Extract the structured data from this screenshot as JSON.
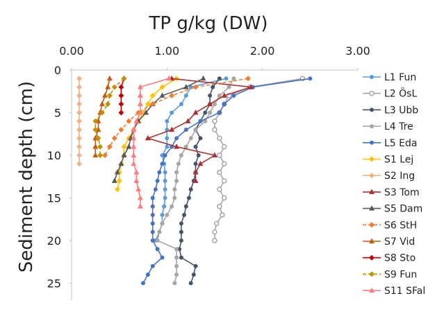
{
  "chart_data": {
    "type": "line",
    "title": "TP g/kg (DW)",
    "xlabel": "TP g/kg (DW)",
    "ylabel": "Sediment depth (cm)",
    "xlim": [
      0,
      3
    ],
    "ylim": [
      0,
      27
    ],
    "x_axis_position": "top",
    "y_axis_inverted": true,
    "x_ticks": [
      "0.00",
      "1.00",
      "2.00",
      "3.00"
    ],
    "y_ticks": [
      "0",
      "5",
      "10",
      "15",
      "20",
      "25"
    ],
    "grid": false,
    "legend_position": "right",
    "series": [
      {
        "name": "L1 Fun",
        "color": "#5b9bd5",
        "marker": "circle",
        "dash": false,
        "points": [
          [
            1.62,
            1
          ],
          [
            1.25,
            2
          ],
          [
            1.2,
            3
          ],
          [
            1.15,
            4
          ],
          [
            1.05,
            5
          ],
          [
            1.0,
            6
          ],
          [
            1.0,
            7
          ],
          [
            1.0,
            8
          ],
          [
            1.0,
            9
          ],
          [
            0.95,
            10
          ],
          [
            0.97,
            11
          ],
          [
            0.98,
            12
          ],
          [
            0.98,
            13
          ],
          [
            0.98,
            14
          ],
          [
            0.98,
            15
          ],
          [
            0.97,
            16
          ],
          [
            0.95,
            17
          ],
          [
            0.95,
            18
          ],
          [
            0.92,
            19
          ],
          [
            0.88,
            20
          ]
        ]
      },
      {
        "name": "L2 ÖsL",
        "color": "#a5a5a5",
        "marker": "circle-open",
        "dash": false,
        "points": [
          [
            2.42,
            1
          ],
          [
            1.87,
            2
          ],
          [
            1.65,
            3
          ],
          [
            1.6,
            4
          ],
          [
            1.55,
            5
          ],
          [
            1.5,
            6
          ],
          [
            1.5,
            7
          ],
          [
            1.55,
            8
          ],
          [
            1.6,
            9
          ],
          [
            1.55,
            10
          ],
          [
            1.6,
            11
          ],
          [
            1.55,
            12
          ],
          [
            1.6,
            13
          ],
          [
            1.55,
            14
          ],
          [
            1.6,
            15
          ],
          [
            1.55,
            16
          ],
          [
            1.58,
            17
          ],
          [
            1.52,
            18
          ],
          [
            1.5,
            19
          ],
          [
            1.5,
            20
          ]
        ]
      },
      {
        "name": "L3 Ubb",
        "color": "#44546a",
        "marker": "circle",
        "dash": false,
        "points": [
          [
            1.55,
            1
          ],
          [
            1.48,
            2
          ],
          [
            1.45,
            3
          ],
          [
            1.45,
            4
          ],
          [
            1.4,
            5
          ],
          [
            1.35,
            6
          ],
          [
            1.3,
            7
          ],
          [
            1.35,
            8
          ],
          [
            1.3,
            9
          ],
          [
            1.33,
            10
          ],
          [
            1.3,
            11
          ],
          [
            1.3,
            12
          ],
          [
            1.28,
            13
          ],
          [
            1.25,
            14
          ],
          [
            1.23,
            15
          ],
          [
            1.2,
            16
          ],
          [
            1.18,
            17
          ],
          [
            1.15,
            18
          ],
          [
            1.15,
            19
          ],
          [
            1.15,
            20
          ],
          [
            1.13,
            21
          ],
          [
            1.15,
            22
          ],
          [
            1.3,
            23
          ],
          [
            1.28,
            24
          ],
          [
            1.25,
            25
          ]
        ]
      },
      {
        "name": "L4 Tre",
        "color": "#a5a5a5",
        "marker": "circle",
        "dash": false,
        "points": [
          [
            1.7,
            1
          ],
          [
            1.65,
            2
          ],
          [
            1.55,
            3
          ],
          [
            1.5,
            4
          ],
          [
            1.45,
            5
          ],
          [
            1.4,
            6
          ],
          [
            1.3,
            7
          ],
          [
            1.25,
            8
          ],
          [
            1.2,
            9
          ],
          [
            1.15,
            10
          ],
          [
            1.12,
            11
          ],
          [
            1.1,
            12
          ],
          [
            1.1,
            13
          ],
          [
            1.08,
            14
          ],
          [
            1.08,
            15
          ],
          [
            1.05,
            16
          ],
          [
            1.0,
            17
          ],
          [
            0.95,
            18
          ],
          [
            0.92,
            19
          ],
          [
            0.9,
            20
          ],
          [
            1.1,
            21
          ],
          [
            1.1,
            22
          ],
          [
            1.1,
            23
          ],
          [
            1.1,
            24
          ],
          [
            1.08,
            25
          ]
        ]
      },
      {
        "name": "L5 Eda",
        "color": "#4472c4",
        "marker": "circle",
        "dash": false,
        "points": [
          [
            2.5,
            1
          ],
          [
            1.9,
            2
          ],
          [
            1.7,
            3
          ],
          [
            1.6,
            4
          ],
          [
            1.55,
            5
          ],
          [
            1.35,
            6
          ],
          [
            1.2,
            7
          ],
          [
            1.1,
            8
          ],
          [
            1.05,
            9
          ],
          [
            0.98,
            10
          ],
          [
            0.95,
            11
          ],
          [
            0.92,
            12
          ],
          [
            0.9,
            13
          ],
          [
            0.88,
            14
          ],
          [
            0.85,
            15
          ],
          [
            0.85,
            16
          ],
          [
            0.85,
            17
          ],
          [
            0.85,
            18
          ],
          [
            0.85,
            19
          ],
          [
            0.85,
            20
          ],
          [
            0.9,
            21
          ],
          [
            0.95,
            22
          ],
          [
            0.85,
            23
          ],
          [
            0.8,
            24
          ],
          [
            0.75,
            25
          ]
        ]
      },
      {
        "name": "S1 Lej",
        "color": "#ffc000",
        "marker": "diamond",
        "dash": false,
        "points": [
          [
            1.1,
            1
          ],
          [
            0.95,
            2
          ],
          [
            0.85,
            3
          ],
          [
            0.8,
            4
          ],
          [
            0.75,
            5
          ],
          [
            0.7,
            6
          ],
          [
            0.65,
            7
          ],
          [
            0.6,
            8
          ],
          [
            0.55,
            9
          ],
          [
            0.55,
            10
          ],
          [
            0.52,
            11
          ],
          [
            0.5,
            12
          ],
          [
            0.5,
            13
          ],
          [
            0.48,
            14
          ]
        ]
      },
      {
        "name": "S2 Ing",
        "color": "#f4b183",
        "marker": "diamond",
        "dash": false,
        "points": [
          [
            0.08,
            1
          ],
          [
            0.08,
            2
          ],
          [
            0.08,
            3
          ],
          [
            0.08,
            4
          ],
          [
            0.08,
            5
          ],
          [
            0.08,
            6
          ],
          [
            0.08,
            7
          ],
          [
            0.08,
            8
          ],
          [
            0.08,
            9
          ],
          [
            0.08,
            10
          ],
          [
            0.08,
            11
          ]
        ]
      },
      {
        "name": "S3 Tom",
        "color": "#a83232",
        "marker": "triangle",
        "dash": false,
        "points": [
          [
            1.05,
            1
          ],
          [
            1.88,
            2
          ],
          [
            1.6,
            3
          ],
          [
            1.45,
            4
          ],
          [
            1.3,
            5
          ],
          [
            1.22,
            6
          ],
          [
            1.05,
            7
          ],
          [
            0.8,
            8
          ],
          [
            1.1,
            9
          ],
          [
            1.5,
            10
          ],
          [
            1.35,
            11
          ],
          [
            1.3,
            12
          ],
          [
            1.3,
            13
          ]
        ]
      },
      {
        "name": "S5 Dam",
        "color": "#595959",
        "marker": "triangle",
        "dash": false,
        "points": [
          [
            1.38,
            1
          ],
          [
            1.2,
            2
          ],
          [
            0.95,
            3
          ],
          [
            0.85,
            4
          ],
          [
            0.78,
            5
          ],
          [
            0.7,
            6
          ],
          [
            0.65,
            7
          ],
          [
            0.62,
            8
          ],
          [
            0.6,
            9
          ],
          [
            0.55,
            10
          ],
          [
            0.52,
            11
          ],
          [
            0.48,
            12
          ],
          [
            0.45,
            13
          ]
        ]
      },
      {
        "name": "S6 StH",
        "color": "#ed7d31",
        "marker": "diamond",
        "dash": true,
        "points": [
          [
            1.85,
            1
          ],
          [
            1.3,
            2
          ],
          [
            1.05,
            3
          ],
          [
            0.85,
            4
          ],
          [
            0.7,
            5
          ],
          [
            0.6,
            6
          ],
          [
            0.52,
            7
          ],
          [
            0.45,
            8
          ],
          [
            0.4,
            9
          ],
          [
            0.35,
            10
          ]
        ]
      },
      {
        "name": "S7 Vid",
        "color": "#c55a11",
        "marker": "triangle",
        "dash": false,
        "points": [
          [
            0.4,
            1
          ],
          [
            0.38,
            2
          ],
          [
            0.35,
            3
          ],
          [
            0.32,
            4
          ],
          [
            0.3,
            5
          ],
          [
            0.28,
            6
          ],
          [
            0.28,
            7
          ],
          [
            0.25,
            8
          ],
          [
            0.25,
            9
          ],
          [
            0.25,
            10
          ]
        ]
      },
      {
        "name": "S8 Sto",
        "color": "#c00000",
        "marker": "diamond",
        "dash": false,
        "points": [
          [
            0.55,
            1
          ],
          [
            0.52,
            2
          ],
          [
            0.52,
            3
          ],
          [
            0.52,
            4
          ],
          [
            0.52,
            5
          ]
        ]
      },
      {
        "name": "S9 Fun",
        "color": "#bf9000",
        "marker": "diamond",
        "dash": true,
        "points": [
          [
            0.55,
            1
          ],
          [
            0.45,
            2
          ],
          [
            0.4,
            3
          ],
          [
            0.38,
            4
          ],
          [
            0.32,
            5
          ],
          [
            0.25,
            6
          ],
          [
            0.25,
            7
          ],
          [
            0.28,
            8
          ],
          [
            0.3,
            9
          ],
          [
            0.3,
            10
          ]
        ]
      },
      {
        "name": "S11 SFal",
        "color": "#ff7c80",
        "marker": "triangle",
        "dash": false,
        "points": [
          [
            1.02,
            1
          ],
          [
            0.72,
            2
          ],
          [
            0.72,
            3
          ],
          [
            0.72,
            4
          ],
          [
            0.72,
            5
          ],
          [
            0.68,
            6
          ],
          [
            0.65,
            7
          ],
          [
            0.65,
            8
          ],
          [
            0.65,
            9
          ],
          [
            0.65,
            10
          ],
          [
            0.65,
            11
          ],
          [
            0.68,
            12
          ],
          [
            0.68,
            13
          ],
          [
            0.7,
            14
          ],
          [
            0.72,
            15
          ],
          [
            0.72,
            16
          ]
        ]
      }
    ]
  }
}
